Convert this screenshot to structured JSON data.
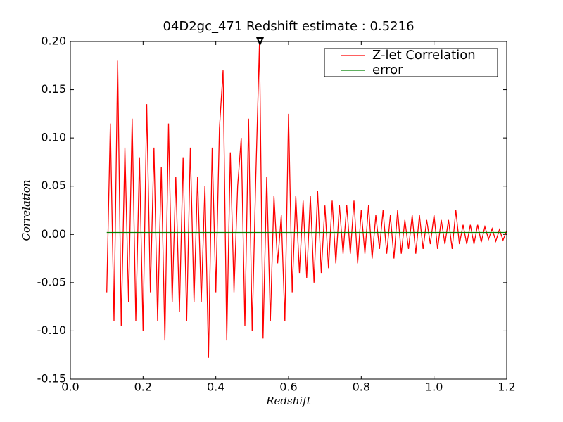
{
  "chart_data": {
    "type": "line",
    "title": "04D2gc_471 Redshift estimate : 0.5216",
    "x_label": "Redshift",
    "y_label": "Correlation",
    "xlim": [
      0,
      1.2
    ],
    "ylim": [
      -0.15,
      0.2
    ],
    "xticks": [
      {
        "value": 0,
        "label": "0.0"
      },
      0.2,
      0.4,
      0.6,
      0.8,
      {
        "value": 1,
        "label": "1.0"
      },
      1.2
    ],
    "yticks": [
      -0.15,
      {
        "value": -0.1,
        "label": "-0.10"
      },
      -0.05,
      {
        "value": 0,
        "label": "0.00"
      },
      0.05,
      {
        "value": 0.1,
        "label": "0.10"
      },
      0.15,
      {
        "value": 0.2,
        "label": "0.20"
      }
    ],
    "legend": "upper right",
    "peak": {
      "x": 0.5216,
      "y": 0.2
    },
    "series": [
      {
        "name": "Z-let Correlation",
        "color": "#ff0000",
        "x": [
          0.1,
          0.11,
          0.12,
          0.13,
          0.14,
          0.15,
          0.16,
          0.17,
          0.18,
          0.19,
          0.2,
          0.21,
          0.22,
          0.23,
          0.24,
          0.25,
          0.26,
          0.27,
          0.28,
          0.29,
          0.3,
          0.31,
          0.32,
          0.33,
          0.34,
          0.35,
          0.36,
          0.37,
          0.38,
          0.39,
          0.4,
          0.41,
          0.42,
          0.43,
          0.44,
          0.45,
          0.46,
          0.47,
          0.48,
          0.49,
          0.5,
          0.51,
          0.52,
          0.53,
          0.54,
          0.55,
          0.56,
          0.57,
          0.58,
          0.59,
          0.6,
          0.61,
          0.62,
          0.63,
          0.64,
          0.65,
          0.66,
          0.67,
          0.68,
          0.69,
          0.7,
          0.71,
          0.72,
          0.73,
          0.74,
          0.75,
          0.76,
          0.77,
          0.78,
          0.79,
          0.8,
          0.81,
          0.82,
          0.83,
          0.84,
          0.85,
          0.86,
          0.87,
          0.88,
          0.89,
          0.9,
          0.91,
          0.92,
          0.93,
          0.94,
          0.95,
          0.96,
          0.97,
          0.98,
          0.99,
          1.0,
          1.01,
          1.02,
          1.03,
          1.04,
          1.05,
          1.06,
          1.07,
          1.08,
          1.09,
          1.1,
          1.11,
          1.12,
          1.13,
          1.14,
          1.15,
          1.16,
          1.17,
          1.18,
          1.19,
          1.2
        ],
        "values": [
          -0.06,
          0.115,
          -0.09,
          0.18,
          -0.095,
          0.09,
          -0.07,
          0.12,
          -0.09,
          0.08,
          -0.1,
          0.135,
          -0.06,
          0.09,
          -0.09,
          0.07,
          -0.11,
          0.115,
          -0.07,
          0.06,
          -0.08,
          0.08,
          -0.09,
          0.09,
          -0.07,
          0.06,
          -0.07,
          0.05,
          -0.128,
          0.09,
          -0.06,
          0.11,
          0.17,
          -0.11,
          0.085,
          -0.06,
          0.05,
          0.1,
          -0.095,
          0.12,
          -0.1,
          0.06,
          0.198,
          -0.108,
          0.06,
          -0.09,
          0.04,
          -0.03,
          0.02,
          -0.09,
          0.125,
          -0.06,
          0.04,
          -0.04,
          0.035,
          -0.045,
          0.04,
          -0.05,
          0.045,
          -0.04,
          0.03,
          -0.035,
          0.035,
          -0.03,
          0.03,
          -0.02,
          0.03,
          -0.02,
          0.035,
          -0.03,
          0.025,
          -0.02,
          0.03,
          -0.025,
          0.02,
          -0.015,
          0.025,
          -0.02,
          0.02,
          -0.025,
          0.025,
          -0.02,
          0.015,
          -0.015,
          0.02,
          -0.02,
          0.02,
          -0.015,
          0.015,
          -0.01,
          0.02,
          -0.015,
          0.015,
          -0.01,
          0.015,
          -0.015,
          0.025,
          -0.01,
          0.01,
          -0.01,
          0.01,
          -0.01,
          0.01,
          -0.008,
          0.008,
          -0.005,
          0.006,
          -0.007,
          0.005,
          -0.006,
          0.004
        ]
      },
      {
        "name": "error",
        "color": "#008000",
        "x": [
          0.1,
          1.2
        ],
        "values": [
          0.002,
          0.002
        ]
      }
    ]
  }
}
